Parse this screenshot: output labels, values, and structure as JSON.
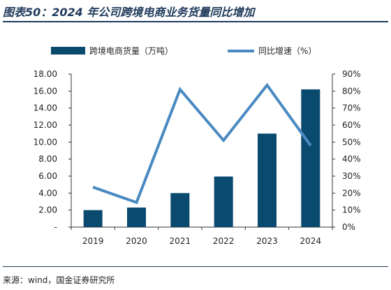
{
  "header": {
    "title": "图表50：2024 年公司跨境电商业务货量同比增加"
  },
  "footer": {
    "source": "来源：wind，国金证券研究所"
  },
  "chart_data": {
    "type": "bar",
    "categories": [
      "2019",
      "2020",
      "2021",
      "2022",
      "2023",
      "2024"
    ],
    "series": [
      {
        "name": "跨境电商货量（万吨）",
        "type": "bar",
        "axis": "left",
        "values": [
          2.0,
          2.3,
          4.0,
          5.95,
          11.0,
          16.2
        ]
      },
      {
        "name": "同比增速（%）",
        "type": "line",
        "axis": "right",
        "values": [
          23.5,
          14.5,
          81.0,
          51.0,
          83.5,
          48.0
        ]
      }
    ],
    "y_left": {
      "lim": [
        0,
        18
      ],
      "ticks": [
        0,
        2,
        4,
        6,
        8,
        10,
        12,
        14,
        16,
        18
      ],
      "tick_labels": [
        "-",
        "2.00",
        "4.00",
        "6.00",
        "8.00",
        "10.00",
        "12.00",
        "14.00",
        "16.00",
        "18.00"
      ]
    },
    "y_right": {
      "lim": [
        0,
        90
      ],
      "ticks": [
        0,
        10,
        20,
        30,
        40,
        50,
        60,
        70,
        80,
        90
      ],
      "tick_labels": [
        "0%",
        "10%",
        "20%",
        "30%",
        "40%",
        "50%",
        "60%",
        "70%",
        "80%",
        "90%"
      ]
    },
    "legend_position": "top",
    "grid": false,
    "colors": {
      "bar": "#0b4a6f",
      "line": "#4a8ac2",
      "axis": "#333333"
    }
  }
}
